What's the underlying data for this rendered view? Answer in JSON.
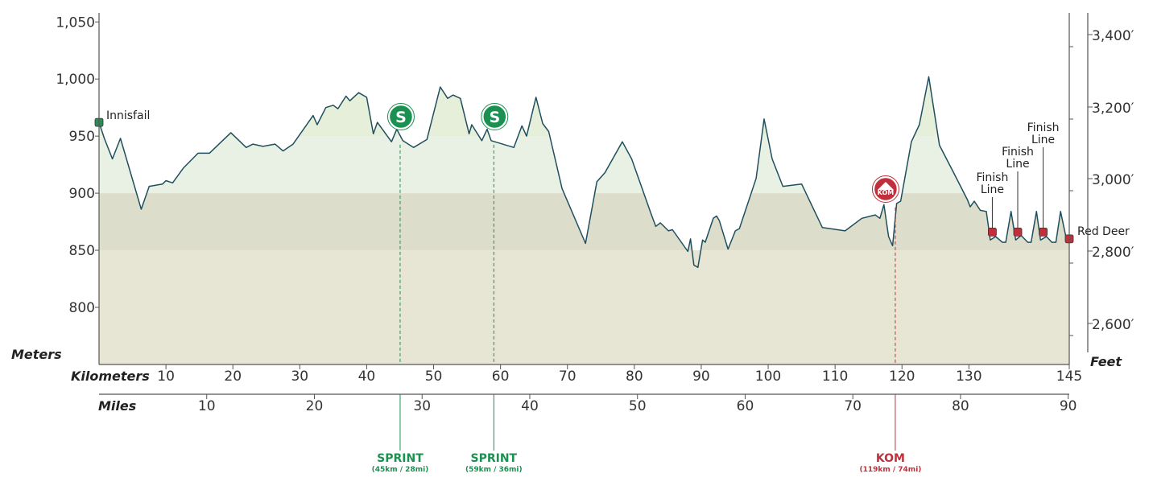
{
  "colors": {
    "band_1000": "#7fa88f",
    "band_950": "#e6efda",
    "band_900": "#e8f1e4",
    "band_850": "#ddddcb",
    "band_800": "#e7e6d5",
    "band_low": "#e7e6d5",
    "line": "#1f4f5e",
    "sprint": "#1a9150",
    "kom": "#c0303c",
    "axis": "#555555"
  },
  "chart_data": {
    "type": "area",
    "ylabel_left": "Meters",
    "ylabel_right": "Feet",
    "xlabel_top": "Kilometers",
    "xlabel_bottom": "Miles",
    "ylim": [
      750,
      1060
    ],
    "xlim": [
      0,
      145
    ],
    "y_ticks": [
      "1,050",
      "1,000",
      "950",
      "900",
      "850",
      "800"
    ],
    "y_ticks_feet": [
      "3,400′",
      "3,200′",
      "3,000′",
      "2,800′",
      "2,600′"
    ],
    "x_ticks_km": [
      "10",
      "20",
      "30",
      "40",
      "50",
      "60",
      "70",
      "80",
      "90",
      "100",
      "110",
      "120",
      "130",
      "145"
    ],
    "x_ticks_mi": [
      "10",
      "20",
      "30",
      "40",
      "50",
      "60",
      "70",
      "80",
      "90"
    ],
    "profile": [
      [
        0,
        962
      ],
      [
        0.8,
        948
      ],
      [
        2,
        930
      ],
      [
        3.2,
        948
      ],
      [
        6.3,
        886
      ],
      [
        7.5,
        906
      ],
      [
        9.5,
        908
      ],
      [
        10,
        911
      ],
      [
        11,
        909
      ],
      [
        12.6,
        922
      ],
      [
        14.8,
        935
      ],
      [
        16.5,
        935
      ],
      [
        19.7,
        953
      ],
      [
        22,
        940
      ],
      [
        23,
        943
      ],
      [
        24.5,
        941
      ],
      [
        26.3,
        943
      ],
      [
        27.5,
        937
      ],
      [
        29,
        943
      ],
      [
        32,
        968
      ],
      [
        32.6,
        960
      ],
      [
        33.9,
        975
      ],
      [
        35,
        977
      ],
      [
        35.7,
        974
      ],
      [
        36.9,
        985
      ],
      [
        37.5,
        981
      ],
      [
        38.8,
        988
      ],
      [
        40,
        984
      ],
      [
        41,
        952
      ],
      [
        41.6,
        962
      ],
      [
        43.7,
        945
      ],
      [
        44.5,
        956
      ],
      [
        45.4,
        946
      ],
      [
        47,
        940
      ],
      [
        49,
        947
      ],
      [
        51,
        993
      ],
      [
        52.1,
        983
      ],
      [
        52.9,
        986
      ],
      [
        54,
        983
      ],
      [
        55.3,
        952
      ],
      [
        55.7,
        960
      ],
      [
        57.2,
        946
      ],
      [
        58,
        956
      ],
      [
        58.6,
        946
      ],
      [
        62,
        940
      ],
      [
        63.2,
        959
      ],
      [
        63.9,
        950
      ],
      [
        65.3,
        984
      ],
      [
        66.3,
        961
      ],
      [
        67.2,
        954
      ],
      [
        69.2,
        904
      ],
      [
        72.7,
        856
      ],
      [
        74.4,
        910
      ],
      [
        75.6,
        918
      ],
      [
        78.2,
        945
      ],
      [
        79.6,
        930
      ],
      [
        82.5,
        882
      ],
      [
        83.2,
        871
      ],
      [
        83.9,
        874
      ],
      [
        85.1,
        867
      ],
      [
        85.7,
        868
      ],
      [
        88,
        849
      ],
      [
        88.4,
        860
      ],
      [
        88.9,
        837
      ],
      [
        89.5,
        835
      ],
      [
        90.2,
        859
      ],
      [
        90.6,
        857
      ],
      [
        91.8,
        878
      ],
      [
        92.3,
        880
      ],
      [
        92.7,
        876
      ],
      [
        94,
        851
      ],
      [
        95.1,
        867
      ],
      [
        95.7,
        869
      ],
      [
        98.2,
        913
      ],
      [
        99.4,
        965
      ],
      [
        100.6,
        930
      ],
      [
        102.2,
        906
      ],
      [
        105,
        908
      ],
      [
        108.1,
        870
      ],
      [
        111.5,
        867
      ],
      [
        114,
        878
      ],
      [
        116,
        881
      ],
      [
        116.7,
        878
      ],
      [
        117.3,
        890
      ],
      [
        118,
        862
      ],
      [
        118.6,
        854
      ],
      [
        119.2,
        891
      ],
      [
        119.8,
        893
      ],
      [
        121.4,
        945
      ],
      [
        122.6,
        960
      ],
      [
        124,
        1002
      ],
      [
        125.6,
        942
      ],
      [
        127.8,
        917
      ],
      [
        129.8,
        894
      ],
      [
        130.2,
        888
      ],
      [
        130.8,
        893
      ],
      [
        131.7,
        885
      ],
      [
        132.6,
        884
      ],
      [
        133.2,
        859
      ],
      [
        134,
        862
      ],
      [
        135,
        857
      ],
      [
        135.5,
        857
      ],
      [
        136.3,
        884
      ],
      [
        137,
        859
      ],
      [
        137.8,
        863
      ],
      [
        138.8,
        857
      ],
      [
        139.3,
        857
      ],
      [
        140.1,
        884
      ],
      [
        140.7,
        859
      ],
      [
        141.6,
        862
      ],
      [
        142.4,
        857
      ],
      [
        143,
        857
      ],
      [
        143.7,
        884
      ],
      [
        144.5,
        862
      ],
      [
        145,
        860
      ]
    ],
    "bands": [
      [
        1000,
        1060
      ],
      [
        950,
        1000
      ],
      [
        900,
        950
      ],
      [
        850,
        900
      ],
      [
        800,
        850
      ],
      [
        750,
        800
      ]
    ],
    "places": [
      {
        "km": 0,
        "elev": 962,
        "label": "Innisfail"
      },
      {
        "km": 145,
        "elev": 860,
        "label": "Red Deer"
      }
    ],
    "finish_lines": [
      {
        "km": 133.5,
        "elev": 866,
        "line1": "Finish",
        "line2": "Line"
      },
      {
        "km": 137.3,
        "elev": 866,
        "line1": "Finish",
        "line2": "Line"
      },
      {
        "km": 141.1,
        "elev": 866,
        "line1": "Finish",
        "line2": "Line"
      }
    ],
    "sprints": [
      {
        "km": 45,
        "elev": 946,
        "title": "SPRINT",
        "sub": "(45km / 28mi)",
        "icon": "S"
      },
      {
        "km": 59,
        "elev": 946,
        "title": "SPRINT",
        "sub": "(59km / 36mi)",
        "icon": "S"
      }
    ],
    "kom": [
      {
        "km": 119,
        "elev": 891,
        "title": "KOM",
        "sub": "(119km / 74mi)",
        "icon": "KOM"
      }
    ]
  }
}
